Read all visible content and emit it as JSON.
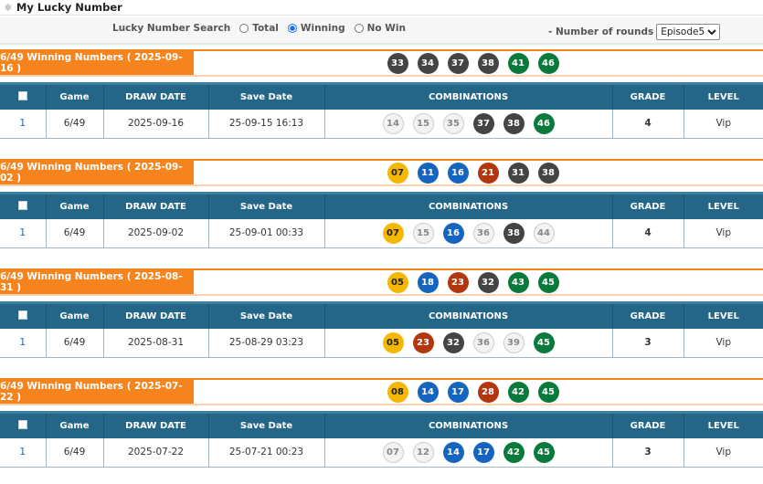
{
  "header": {
    "title": "My Lucky Number",
    "icon": "atom-icon"
  },
  "search": {
    "label": "Lucky Number Search",
    "options": [
      "Total",
      "Winning",
      "No Win"
    ],
    "selected": "Winning",
    "rounds_label": "- Number of rounds",
    "rounds_value": "Episode5"
  },
  "columns": [
    "",
    "Game",
    "DRAW DATE",
    "Save Date",
    "COMBINATIONS",
    "GRADE",
    "LEVEL"
  ],
  "ball_colors": {
    "1-10": "#f5b800",
    "11-20": "#1565c0",
    "21-30": "#b3360f",
    "31-40": "#444444",
    "41-49": "#0a7a3a",
    "unmatched": "#f3f3f3"
  },
  "draws": [
    {
      "label": "6/49 Winning Numbers ( 2025-09-16 )",
      "winning": [
        "33",
        "34",
        "37",
        "38",
        "41",
        "46"
      ],
      "row": {
        "no": "1",
        "game": "6/49",
        "draw_date": "2025-09-16",
        "save_date": "25-09-15 16:13",
        "combo": [
          "14",
          "15",
          "35",
          "37",
          "38",
          "46"
        ],
        "matched": [
          false,
          false,
          false,
          true,
          true,
          true
        ],
        "grade": "4",
        "level": "Vip"
      }
    },
    {
      "label": "6/49 Winning Numbers ( 2025-09-02 )",
      "winning": [
        "07",
        "11",
        "16",
        "21",
        "31",
        "38"
      ],
      "row": {
        "no": "1",
        "game": "6/49",
        "draw_date": "2025-09-02",
        "save_date": "25-09-01 00:33",
        "combo": [
          "07",
          "15",
          "16",
          "36",
          "38",
          "44"
        ],
        "matched": [
          true,
          false,
          true,
          false,
          true,
          false
        ],
        "grade": "4",
        "level": "Vip"
      }
    },
    {
      "label": "6/49 Winning Numbers ( 2025-08-31 )",
      "winning": [
        "05",
        "18",
        "23",
        "32",
        "43",
        "45"
      ],
      "row": {
        "no": "1",
        "game": "6/49",
        "draw_date": "2025-08-31",
        "save_date": "25-08-29 03:23",
        "combo": [
          "05",
          "23",
          "32",
          "36",
          "39",
          "45"
        ],
        "matched": [
          true,
          true,
          true,
          false,
          false,
          true
        ],
        "grade": "3",
        "level": "Vip"
      }
    },
    {
      "label": "6/49 Winning Numbers ( 2025-07-22 )",
      "winning": [
        "08",
        "14",
        "17",
        "28",
        "42",
        "45"
      ],
      "row": {
        "no": "1",
        "game": "6/49",
        "draw_date": "2025-07-22",
        "save_date": "25-07-21 00:23",
        "combo": [
          "07",
          "12",
          "14",
          "17",
          "42",
          "45"
        ],
        "matched": [
          false,
          false,
          true,
          true,
          true,
          true
        ],
        "grade": "3",
        "level": "Vip"
      }
    }
  ]
}
